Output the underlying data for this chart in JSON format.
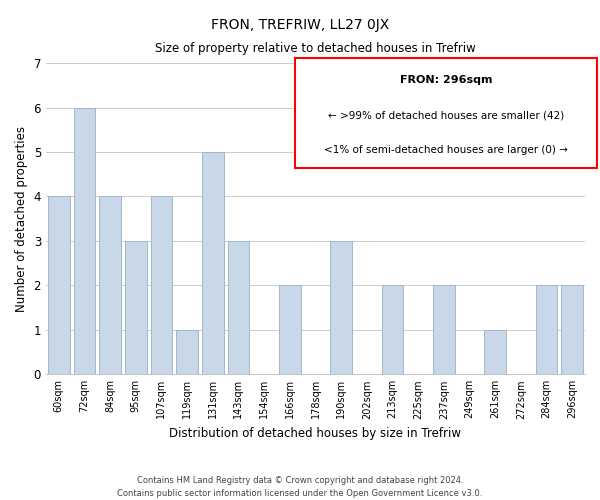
{
  "title": "FRON, TREFRIW, LL27 0JX",
  "subtitle": "Size of property relative to detached houses in Trefriw",
  "xlabel": "Distribution of detached houses by size in Trefriw",
  "ylabel": "Number of detached properties",
  "categories": [
    "60sqm",
    "72sqm",
    "84sqm",
    "95sqm",
    "107sqm",
    "119sqm",
    "131sqm",
    "143sqm",
    "154sqm",
    "166sqm",
    "178sqm",
    "190sqm",
    "202sqm",
    "213sqm",
    "225sqm",
    "237sqm",
    "249sqm",
    "261sqm",
    "272sqm",
    "284sqm",
    "296sqm"
  ],
  "values": [
    4,
    6,
    4,
    3,
    4,
    1,
    5,
    3,
    0,
    2,
    0,
    3,
    0,
    2,
    0,
    2,
    0,
    1,
    0,
    2,
    2
  ],
  "bar_color": "#c8d8e8",
  "bar_edge_color": "#a0b8cc",
  "ylim": [
    0,
    7
  ],
  "yticks": [
    0,
    1,
    2,
    3,
    4,
    5,
    6,
    7
  ],
  "grid_color": "#cccccc",
  "background_color": "#ffffff",
  "legend_box_color": "#ff0000",
  "legend_title": "FRON: 296sqm",
  "legend_line1": "← >99% of detached houses are smaller (42)",
  "legend_line2": "<1% of semi-detached houses are larger (0) →",
  "footer_line1": "Contains HM Land Registry data © Crown copyright and database right 2024.",
  "footer_line2": "Contains public sector information licensed under the Open Government Licence v3.0."
}
